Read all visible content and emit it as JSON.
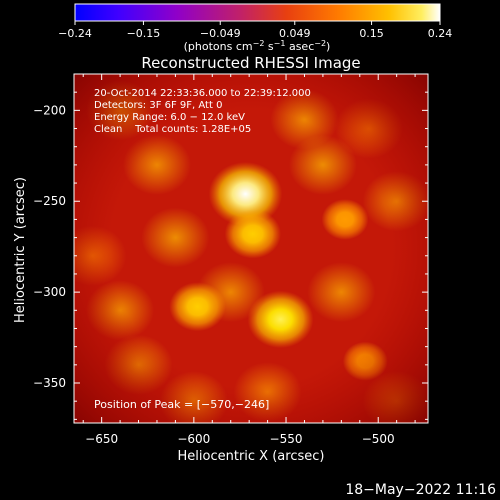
{
  "chart_data": {
    "type": "heatmap",
    "title": "Reconstructed RHESSI Image",
    "xlabel": "Heliocentric X (arcsec)",
    "ylabel": "Heliocentric Y (arcsec)",
    "xlim": [
      -665,
      -473
    ],
    "ylim": [
      -372,
      -180
    ],
    "x_ticks": [
      -650,
      -600,
      -550,
      -500
    ],
    "y_ticks": [
      -200,
      -250,
      -300,
      -350
    ],
    "x_tick_labels": [
      "−650",
      "−600",
      "−550",
      "−500"
    ],
    "y_tick_labels": [
      "−200",
      "−250",
      "−300",
      "−350"
    ],
    "colorbar": {
      "range": [
        -0.24,
        0.24
      ],
      "ticks": [
        -0.24,
        -0.15,
        -0.049,
        0.049,
        0.15,
        0.24
      ],
      "tick_labels": [
        "−0.24",
        "−0.15",
        "−0.049",
        "0.049",
        "0.15",
        "0.24"
      ],
      "unit_label": "(photons cm",
      "unit_sup1": "−2",
      "unit_mid": " s",
      "unit_sup2": "−1",
      "unit_mid2": " asec",
      "unit_sup3": "−2",
      "unit_end": ")"
    },
    "annotations": [
      "20-Oct-2014 22:33:36.000 to 22:39:12.000",
      "Detectors: 3F 6F 9F, Att 0",
      "Energy Range: 6.0 − 12.0 keV",
      "Clean    Total counts: 1.28E+05"
    ],
    "peak_label": "Position of Peak = [−570,−246]",
    "sources": [
      {
        "x": -572,
        "y": -246,
        "value": 0.24
      },
      {
        "x": -553,
        "y": -315,
        "value": 0.2
      },
      {
        "x": -598,
        "y": -308,
        "value": 0.15
      },
      {
        "x": -568,
        "y": -268,
        "value": 0.15
      },
      {
        "x": -518,
        "y": -260,
        "value": 0.1
      },
      {
        "x": -507,
        "y": -338,
        "value": 0.09
      }
    ],
    "background_level": 0.1,
    "colors": [
      "#0000ff",
      "#5500ff",
      "#9400c8",
      "#c01a6a",
      "#e03c10",
      "#ff6a00",
      "#ffb400",
      "#ffe800",
      "#ffffff"
    ]
  },
  "footer": {
    "timestamp": "18−May−2022 11:16"
  }
}
